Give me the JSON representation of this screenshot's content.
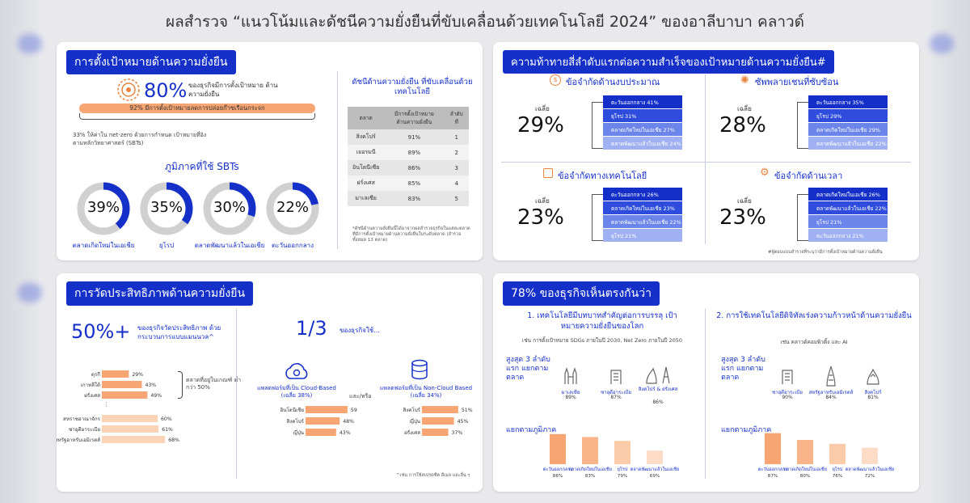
{
  "title": "ผลสำรวจ “แนวโน้มและดัชนีความยั่งยืนที่ขับเคลื่อนด้วยเทคโนโลยี 2024” ของอาลีบาบา คลาวด์",
  "colors": {
    "primary": "#1530c9",
    "orange": "#f6a573",
    "light_orange": "#fbd3b7",
    "gray": "#d0d0d0"
  },
  "panel1": {
    "tag": "การตั้งเป้าหมายด้านความยั่งยืน",
    "big_pct": "80%",
    "big_desc": "ของธุรกิจมีการตั้งเป้าหมาย ด้านความยั่งยืน",
    "bar_text": "92% มีการตั้งเป้าหมายลดการปล่อยก๊าซเรือนกระจก",
    "note": "33% ให้ค่าใน net-zero ด้วยการกำหนด เป้าหมายที่อิงตามหลักวิทยาศาสตร์ (SBTs)",
    "sbt_title": "ภูมิภาคที่ใช้ SBTs",
    "donuts": [
      {
        "value": "39%",
        "fraction": 0.39,
        "label": "ตลาดเกิดใหม่ในเอเชีย"
      },
      {
        "value": "35%",
        "fraction": 0.35,
        "label": "ยุโรป"
      },
      {
        "value": "30%",
        "fraction": 0.3,
        "label": "ตลาดพัฒนาแล้วในเอเชีย"
      },
      {
        "value": "22%",
        "fraction": 0.22,
        "label": "ตะวันออกกลาง"
      }
    ],
    "index_title": "ดัชนีด้านความยั่งยืน ที่ขับเคลื่อนด้วยเทคโนโลยี",
    "table_headers": [
      "ตลาด",
      "มีการตั้งเป้าหมาย ด้านความยั่งยืน",
      "ลำดับที่"
    ],
    "table_rows": [
      [
        "สิงคโปร์",
        "91%",
        "1"
      ],
      [
        "เยอรมนี",
        "89%",
        "2"
      ],
      [
        "อินโดนีเซีย",
        "86%",
        "3"
      ],
      [
        "ฝรั่งเศส",
        "85%",
        "4"
      ],
      [
        "มาเลเซีย",
        "83%",
        "5"
      ]
    ],
    "footnote": "*ดัชนีด้านความยั่งยืนนี้ได้มาจากผลสำรวจธุรกิจในแต่ละตลาด ที่มีการตั้งเป้าหมายด้านความยั่งยืนในระดับตลาด (สำรวจทั้งหมด 13 ตลาด)"
  },
  "panel2": {
    "tag": "ความท้าทายสี่ลำดับแรกต่อความสำเร็จของเป้าหมายด้านความยั่งยืน#",
    "avg_label": "เฉลี่ย",
    "challenges": [
      {
        "title": "ข้อจำกัดด้านงบประมาณ",
        "icon": "coin-icon",
        "avg": "29%",
        "rows": [
          "ตะวันออกกลาง 41%",
          "ยุโรป 31%",
          "ตลาดเกิดใหม่ในเอเชีย 27%",
          "ตลาดพัฒนาแล้วในเอเชีย 24%"
        ]
      },
      {
        "title": "ซัพพลายเชนที่ซับซ้อน",
        "icon": "network-icon",
        "avg": "28%",
        "rows": [
          "ตะวันออกกลาง 35%",
          "ยุโรป 29%",
          "ตลาดเกิดใหม่ในเอเชีย 29%",
          "ตลาดพัฒนาแล้วในเอเชีย 22%"
        ]
      },
      {
        "title": "ข้อจำกัดทางเทคโนโลยี",
        "icon": "chip-icon",
        "avg": "23%",
        "rows": [
          "ตะวันออกกลาง 26%",
          "ตลาดเกิดใหม่ในเอเชีย 23%",
          "ตลาดพัฒนาแล้วในเอเชีย 22%",
          "ยุโรป 21%"
        ]
      },
      {
        "title": "ข้อจำกัดด้านเวลา",
        "icon": "gear-clock-icon",
        "avg": "23%",
        "rows": [
          "ตลาดเกิดใหม่ในเอเชีย 26%",
          "ตลาดพัฒนาแล้วในเอเชีย 22%",
          "ยุโรป 21%",
          "ตะวันออกกลาง 21%"
        ]
      }
    ],
    "footnote": "#ผู้ตอบแบบสำรวจที่ระบุว่ามีการตั้งเป้าหมายด้านความยั่งยืน"
  },
  "panel3": {
    "tag": "การวัดประสิทธิภาพด้านความยั่งยืน",
    "big_pct": "50%+",
    "big_desc": "ของธุรกิจวัดประสิทธิภาพ ด้วยกระบวนการแบบแมนนวล^",
    "below_avg_note": "ตลาดที่อยู่ในเกณฑ์ ต่ำกว่า 50%",
    "manual_rows": [
      {
        "label": "ตุรกี",
        "value": 29,
        "text": "29%"
      },
      {
        "label": "เกาหลีใต้",
        "value": 43,
        "text": "43%"
      },
      {
        "label": "ฝรั่งเศส",
        "value": 49,
        "text": "49%"
      },
      {
        "label": "สหราชอาณาจักร",
        "value": 60,
        "text": "60%"
      },
      {
        "label": "ซาอุดีอาระเบีย",
        "value": 61,
        "text": "61%"
      },
      {
        "label": "สหรัฐอาหรับเอมิเรตส์",
        "value": 68,
        "text": "68%"
      }
    ],
    "one_third": "1/3",
    "one_third_desc": "ของธุรกิจใช้...",
    "cloud_title": "แพลตฟอร์มที่เป็น Cloud-Based (เฉลี่ย 38%)",
    "and_or": "และ/หรือ",
    "noncloud_title": "แพลตฟอร์มที่เป็น Non-Cloud Based (เฉลี่ย 34%)",
    "cloud_rows": [
      {
        "label": "อินโดนีเซีย",
        "value": 59,
        "text": "59%"
      },
      {
        "label": "สิงคโปร์",
        "value": 48,
        "text": "48%"
      },
      {
        "label": "ญี่ปุ่น",
        "value": 43,
        "text": "43%"
      }
    ],
    "noncloud_rows": [
      {
        "label": "สิงคโปร์",
        "value": 51,
        "text": "51%"
      },
      {
        "label": "ญี่ปุ่น",
        "value": 45,
        "text": "45%"
      },
      {
        "label": "ฝรั่งเศส",
        "value": 37,
        "text": "37%"
      }
    ],
    "footnote": "^เช่น การใช้สเปรดชีต อีเมล และอื่น ๆ"
  },
  "panel4": {
    "tag": "78% ของธุรกิจเห็นตรงกันว่า",
    "left": {
      "heading": "1. เทคโนโลยีมีบทบาทสำคัญต่อการบรรลุ เป้าหมายความยั่งยืนของโลก",
      "sub": "เช่น การตั้งเป้าหมาย SDGs ภายในปี 2030, Net Zero ภายในปี 2050",
      "top3_title": "สูงสุด 3 ลำดับแรก แยกตามตลาด",
      "top3": [
        {
          "label": "มาเลเซีย",
          "value": "89%",
          "icon": "towers-icon"
        },
        {
          "label": "ซาอุดีอาระเบีย",
          "value": "87%",
          "icon": "building-icon"
        },
        {
          "label": "สิงคโปร์ & ฝรั่งเศส",
          "value": "86%",
          "icon": "merlion-tower-icon"
        }
      ],
      "region_title": "แยกตามภูมิภาค",
      "regions": [
        {
          "label": "ตะวันออกกลาง",
          "value": 86,
          "text": "86%"
        },
        {
          "label": "ตลาดเกิดใหม่ในเอเชีย",
          "value": 83,
          "text": "83%"
        },
        {
          "label": "ยุโรป",
          "value": 79,
          "text": "79%"
        },
        {
          "label": "ตลาดพัฒนาแล้วในเอเชีย",
          "value": 69,
          "text": "69%"
        }
      ]
    },
    "right": {
      "heading": "2. การใช้เทคโนโลยีดิจิทัลเร่งความก้าวหน้าด้านความยั่งยืน",
      "sub": "เช่น คลาวด์คอมพิวติ้ง และ AI",
      "top3_title": "สูงสุด 3 ลำดับแรก แยกตามตลาด",
      "top3": [
        {
          "label": "ซาอุดีอาระเบีย",
          "value": "90%",
          "icon": "building-icon"
        },
        {
          "label": "สหรัฐอาหรับเอมิเรตส์",
          "value": "84%",
          "icon": "burj-icon"
        },
        {
          "label": "สิงคโปร์",
          "value": "81%",
          "icon": "merlion-icon"
        }
      ],
      "region_title": "แยกตามภูมิภาค",
      "regions": [
        {
          "label": "ตะวันออกกลาง",
          "value": 87,
          "text": "87%"
        },
        {
          "label": "ตลาดเกิดใหม่ในเอเชีย",
          "value": 80,
          "text": "80%"
        },
        {
          "label": "ยุโรป",
          "value": 76,
          "text": "76%"
        },
        {
          "label": "ตลาดพัฒนาแล้วในเอเชีย",
          "value": 72,
          "text": "72%"
        }
      ]
    }
  },
  "chart_data": [
    {
      "type": "pie",
      "title": "ภูมิภาคที่ใช้ SBTs",
      "categories": [
        "ตลาดเกิดใหม่ในเอเชีย",
        "ยุโรป",
        "ตลาดพัฒนาแล้วในเอเชีย",
        "ตะวันออกกลาง"
      ],
      "values": [
        39,
        35,
        30,
        22
      ]
    },
    {
      "type": "table",
      "title": "ดัชนีด้านความยั่งยืน ที่ขับเคลื่อนด้วยเทคโนโลยี",
      "categories": [
        "สิงคโปร์",
        "เยอรมนี",
        "อินโดนีเซีย",
        "ฝรั่งเศส",
        "มาเลเซีย"
      ],
      "values": [
        91,
        89,
        86,
        85,
        83
      ]
    },
    {
      "type": "bar",
      "title": "การวัดประสิทธิภาพแบบแมนนวล",
      "categories": [
        "ตุรกี",
        "เกาหลีใต้",
        "ฝรั่งเศส",
        "สหราชอาณาจักร",
        "ซาอุดีอาระเบีย",
        "สหรัฐอาหรับเอมิเรตส์"
      ],
      "values": [
        29,
        43,
        49,
        60,
        61,
        68
      ]
    },
    {
      "type": "bar",
      "title": "Cloud-Based",
      "categories": [
        "อินโดนีเซีย",
        "สิงคโปร์",
        "ญี่ปุ่น"
      ],
      "values": [
        59,
        48,
        43
      ]
    },
    {
      "type": "bar",
      "title": "Non-Cloud Based",
      "categories": [
        "สิงคโปร์",
        "ญี่ปุ่น",
        "ฝรั่งเศส"
      ],
      "values": [
        51,
        45,
        37
      ]
    },
    {
      "type": "bar",
      "title": "แยกตามภูมิภาค (1)",
      "categories": [
        "ตะวันออกกลาง",
        "ตลาดเกิดใหม่ในเอเชีย",
        "ยุโรป",
        "ตลาดพัฒนาแล้วในเอเชีย"
      ],
      "values": [
        86,
        83,
        79,
        69
      ]
    },
    {
      "type": "bar",
      "title": "แยกตามภูมิภาค (2)",
      "categories": [
        "ตะวันออกกลาง",
        "ตลาดเกิดใหม่ในเอเชีย",
        "ยุโรป",
        "ตลาดพัฒนาแล้วในเอเชีย"
      ],
      "values": [
        87,
        80,
        76,
        72
      ]
    }
  ]
}
